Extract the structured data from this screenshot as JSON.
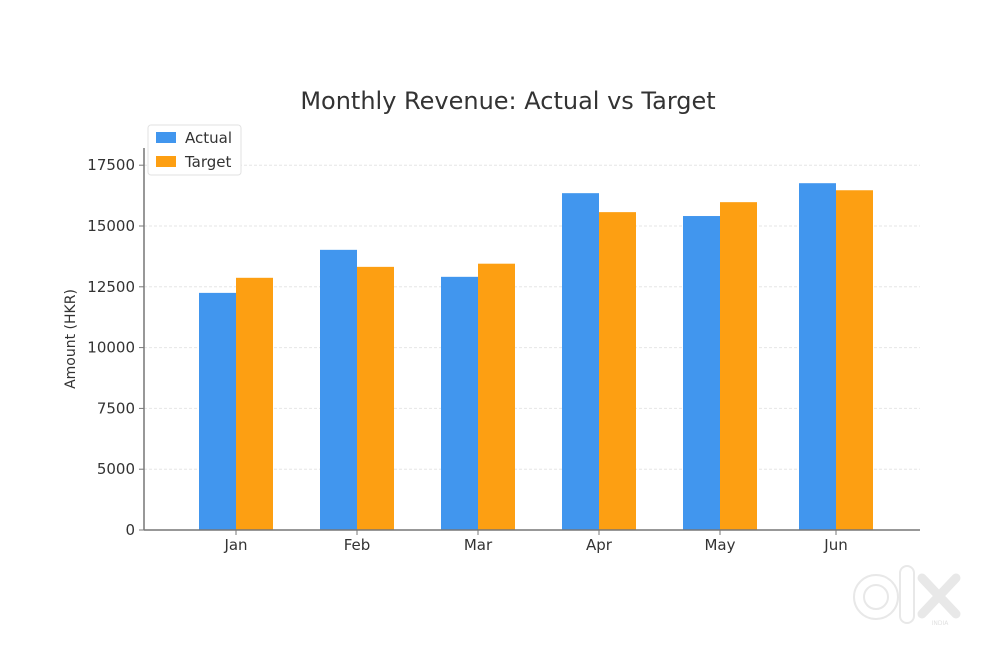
{
  "chart_data": {
    "type": "bar",
    "title": "Monthly Revenue: Actual vs Target",
    "xlabel": "",
    "ylabel": "Amount (HKR)",
    "categories": [
      "Jan",
      "Feb",
      "Mar",
      "Apr",
      "May",
      "Jun"
    ],
    "series": [
      {
        "name": "Actual",
        "color": "#4196ee",
        "values": [
          12250,
          14020,
          12910,
          16350,
          15410,
          16760
        ]
      },
      {
        "name": "Target",
        "color": "#fd9f12",
        "values": [
          12870,
          13320,
          13450,
          15570,
          15980,
          16470
        ]
      }
    ],
    "yticks": [
      0,
      5000,
      7500,
      10000,
      12500,
      15000,
      17500
    ],
    "ylim": [
      0,
      18500
    ],
    "grid": true,
    "legend_position": "top-left"
  },
  "watermark": {
    "brand": "OLX",
    "region": "INDIA"
  }
}
